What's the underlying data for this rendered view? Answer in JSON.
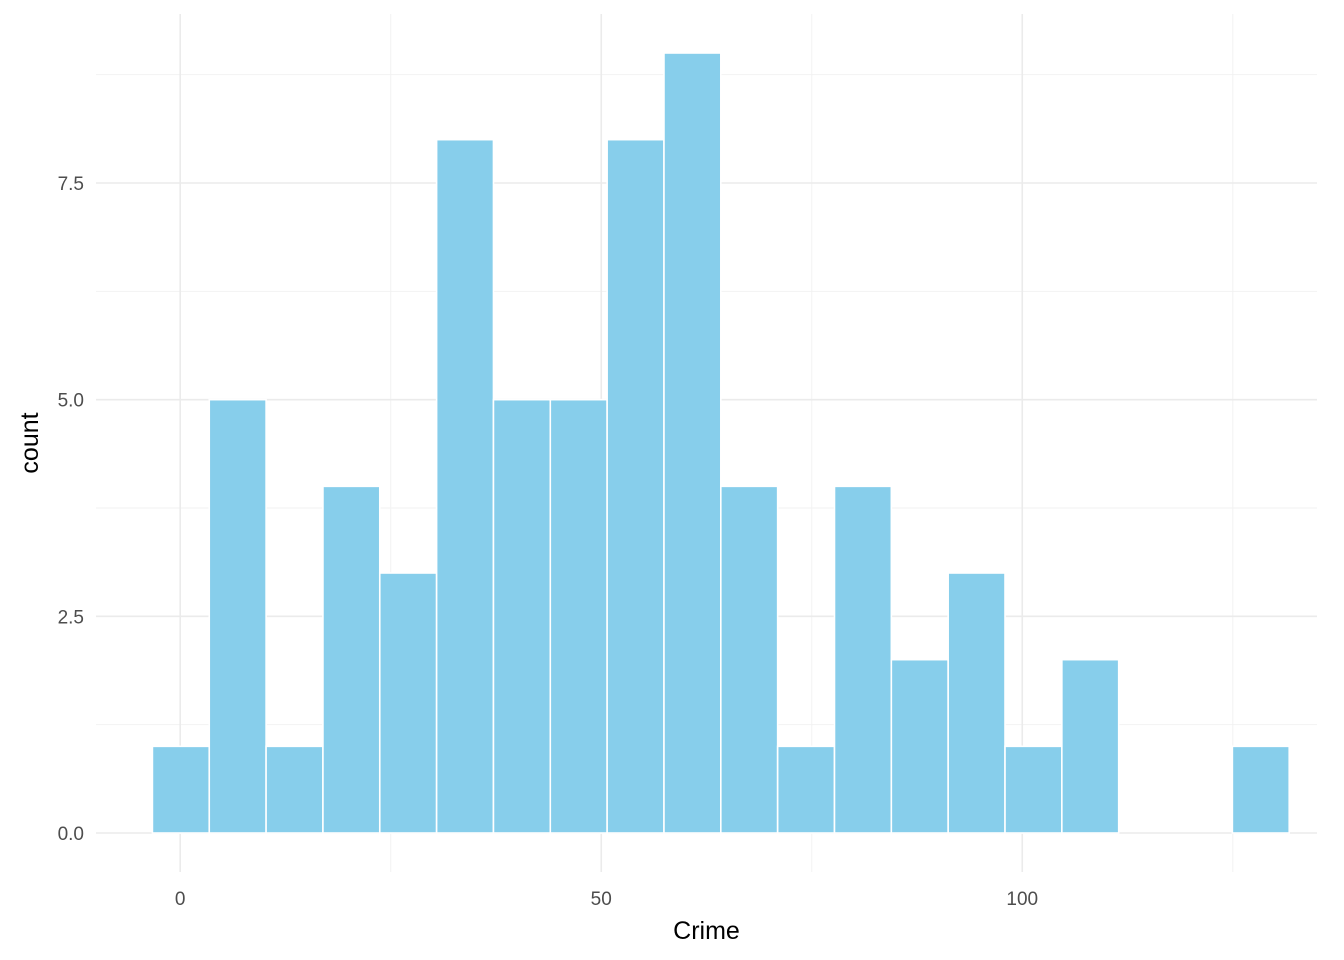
{
  "chart_data": {
    "type": "bar",
    "subtype": "histogram",
    "xlabel": "Crime",
    "ylabel": "count",
    "bin_width": 6.75,
    "bins": [
      {
        "x_start": -3.3,
        "x_end": 3.45,
        "count": 1
      },
      {
        "x_start": 3.45,
        "x_end": 10.2,
        "count": 5
      },
      {
        "x_start": 10.2,
        "x_end": 16.95,
        "count": 1
      },
      {
        "x_start": 16.95,
        "x_end": 23.7,
        "count": 4
      },
      {
        "x_start": 23.7,
        "x_end": 30.45,
        "count": 3
      },
      {
        "x_start": 30.45,
        "x_end": 37.2,
        "count": 8
      },
      {
        "x_start": 37.2,
        "x_end": 43.95,
        "count": 5
      },
      {
        "x_start": 43.95,
        "x_end": 50.7,
        "count": 5
      },
      {
        "x_start": 50.7,
        "x_end": 57.45,
        "count": 8
      },
      {
        "x_start": 57.45,
        "x_end": 64.2,
        "count": 9
      },
      {
        "x_start": 64.2,
        "x_end": 70.95,
        "count": 4
      },
      {
        "x_start": 70.95,
        "x_end": 77.7,
        "count": 1
      },
      {
        "x_start": 77.7,
        "x_end": 84.45,
        "count": 4
      },
      {
        "x_start": 84.45,
        "x_end": 91.2,
        "count": 2
      },
      {
        "x_start": 91.2,
        "x_end": 97.95,
        "count": 3
      },
      {
        "x_start": 97.95,
        "x_end": 104.7,
        "count": 1
      },
      {
        "x_start": 104.7,
        "x_end": 111.45,
        "count": 2
      },
      {
        "x_start": 111.45,
        "x_end": 118.2,
        "count": 0
      },
      {
        "x_start": 118.2,
        "x_end": 124.95,
        "count": 0
      },
      {
        "x_start": 124.95,
        "x_end": 131.7,
        "count": 1
      }
    ],
    "xlim": [
      -10,
      135
    ],
    "ylim": [
      -0.45,
      9.45
    ],
    "x_ticks": [
      0,
      50,
      100
    ],
    "x_tick_labels": [
      "0",
      "50",
      "100"
    ],
    "y_ticks": [
      0,
      2.5,
      5,
      7.5
    ],
    "y_tick_labels": [
      "0.0",
      "2.5",
      "5.0",
      "7.5"
    ],
    "x_minor_ticks": [
      25,
      75,
      125
    ],
    "y_minor_ticks": [
      1.25,
      3.75,
      6.25,
      8.75
    ],
    "grid": true,
    "theme": "minimal",
    "bar_color": "#87ceeb",
    "bar_outline_color": "#ffffff",
    "grid_major_color": "#ebebeb",
    "grid_minor_color": "#f2f2f2",
    "tick_label_color": "#4d4d4d"
  }
}
